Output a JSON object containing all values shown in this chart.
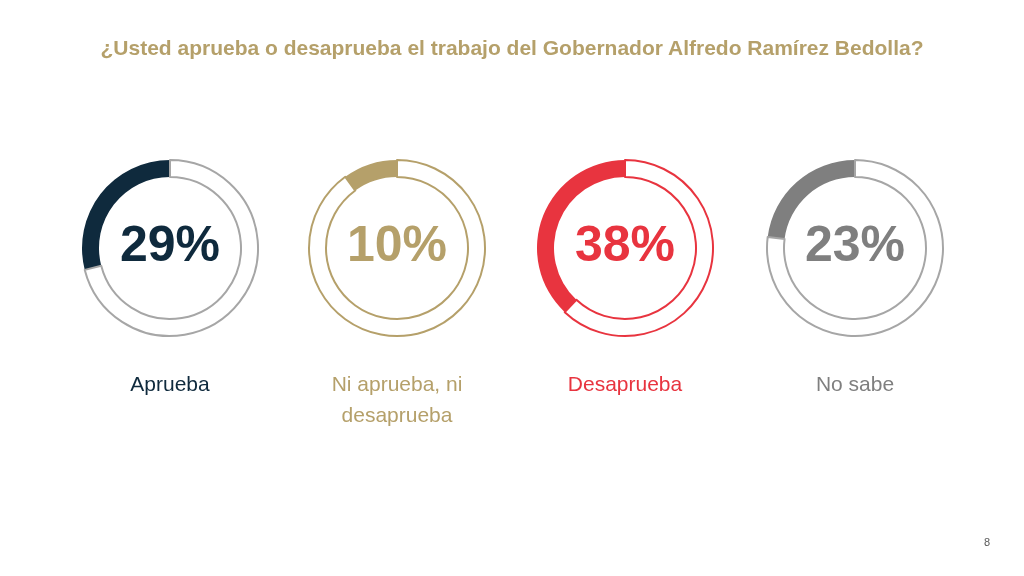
{
  "chart_data": [
    {
      "type": "donut",
      "title": "¿Usted aprueba o desaprueba el trabajo del Gobernador Alfredo Ramírez Bedolla?",
      "subtitle": "Aprueba",
      "categories": [
        null,
        null
      ],
      "values": [
        29,
        71
      ],
      "colors": [
        "#0f2a3d",
        "#a6a6a6"
      ],
      "value_labels": [
        "29%",
        null
      ]
    },
    {
      "type": "donut",
      "title": "Ni aprueba, ni desaprueba",
      "categories": [
        null,
        null
      ],
      "values": [
        10,
        90
      ],
      "colors": [
        "#b5a06a",
        "#b5a06a"
      ],
      "value_labels": [
        "10%",
        null
      ]
    },
    {
      "type": "donut",
      "title": "Desaprueba",
      "categories": [
        null,
        null
      ],
      "values": [
        38,
        62
      ],
      "colors": [
        "#e8343f",
        "#e8343f"
      ],
      "value_labels": [
        "38%",
        null
      ]
    },
    {
      "type": "donut",
      "title": "No sabe",
      "categories": [
        null,
        null
      ],
      "values": [
        23,
        77
      ],
      "colors": [
        "#7f7f7f",
        "#a6a6a6"
      ],
      "value_labels": [
        "23%",
        null
      ],
      "annotations": [
        "8"
      ]
    }
  ]
}
